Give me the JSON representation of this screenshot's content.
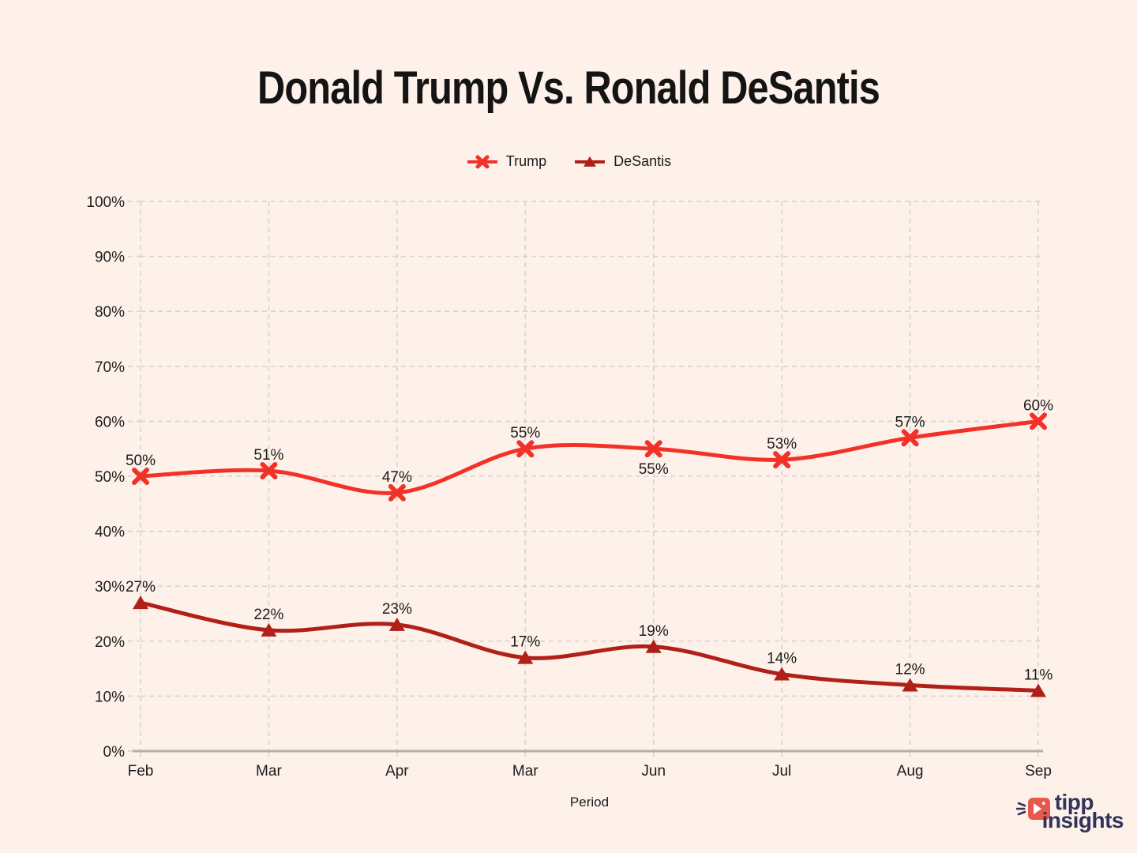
{
  "chart_data": {
    "type": "line",
    "title": "Donald Trump Vs. Ronald DeSantis",
    "xlabel": "Period",
    "ylabel": "",
    "categories": [
      "Feb",
      "Mar",
      "Apr",
      "Mar",
      "Jun",
      "Jul",
      "Aug",
      "Sep"
    ],
    "series": [
      {
        "name": "Trump",
        "color": "#f23228",
        "marker": "x",
        "values": [
          50,
          51,
          47,
          55,
          55,
          53,
          57,
          60
        ],
        "label_positions": [
          "above",
          "above",
          "above",
          "above",
          "below",
          "above",
          "above",
          "above"
        ]
      },
      {
        "name": "DeSantis",
        "color": "#b02018",
        "marker": "triangle",
        "values": [
          27,
          22,
          23,
          17,
          19,
          14,
          12,
          11
        ],
        "label_positions": [
          "above",
          "above",
          "above",
          "above",
          "above",
          "above",
          "above",
          "above"
        ]
      }
    ],
    "ylim": [
      0,
      100
    ],
    "ytick_step": 10,
    "ytick_suffix": "%",
    "label_suffix": "%",
    "grid": true,
    "legend_position": "top",
    "colors": {
      "background": "#fdf1ea",
      "grid": "#d7d1cd",
      "axis": "#b6afab",
      "text": "#1c1c1c"
    }
  },
  "branding": {
    "logo_line1": "tipp",
    "logo_line2": "insights",
    "navy": "#31335a",
    "coral": "#e8594c"
  }
}
